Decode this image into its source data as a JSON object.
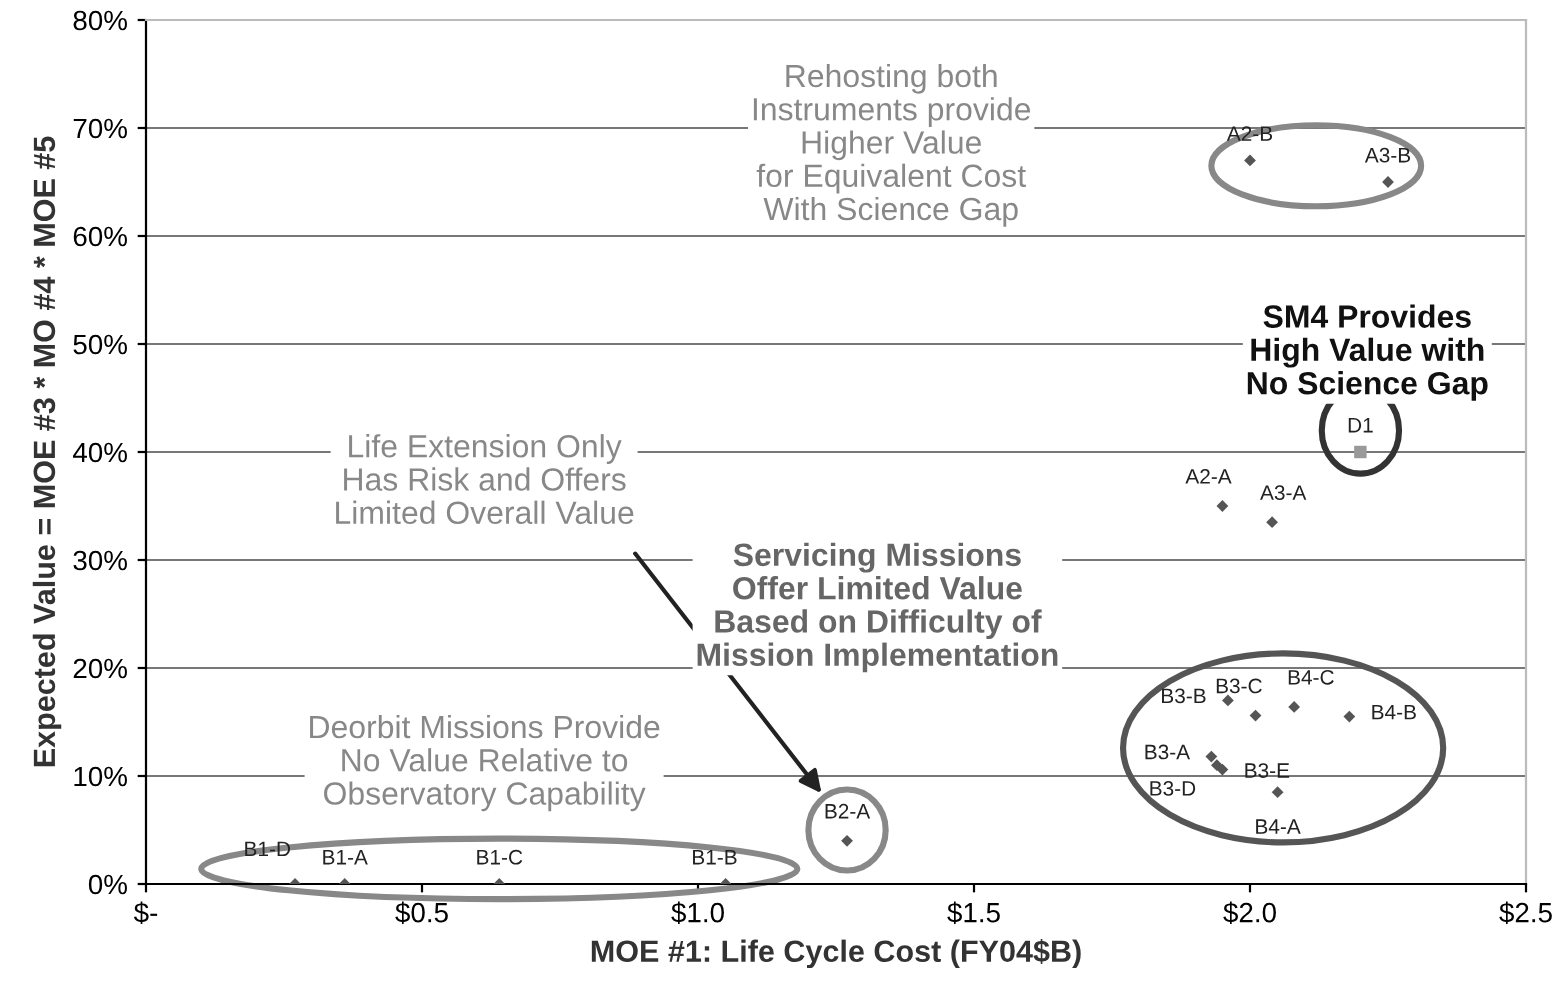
{
  "chart_data": {
    "type": "scatter",
    "xlabel": "MOE #1: Life Cycle Cost (FY04$B)",
    "ylabel": "Expected Value = MOE #3 * MO #4 * MOE #5",
    "xlim": [
      0,
      2.5
    ],
    "xticks": [
      {
        "value": 0,
        "label": "$-"
      },
      {
        "value": 0.5,
        "label": "$0.5"
      },
      {
        "value": 1.0,
        "label": "$1.0"
      },
      {
        "value": 1.5,
        "label": "$1.5"
      },
      {
        "value": 2.0,
        "label": "$2.0"
      },
      {
        "value": 2.5,
        "label": "$2.5"
      }
    ],
    "ylim": [
      0,
      80
    ],
    "yticks": [
      {
        "value": 0,
        "label": "0%"
      },
      {
        "value": 10,
        "label": "10%"
      },
      {
        "value": 20,
        "label": "20%"
      },
      {
        "value": 30,
        "label": "30%"
      },
      {
        "value": 40,
        "label": "40%"
      },
      {
        "value": 50,
        "label": "50%"
      },
      {
        "value": 60,
        "label": "60%"
      },
      {
        "value": 70,
        "label": "70%"
      },
      {
        "value": 80,
        "label": "80%"
      }
    ],
    "grid": "y",
    "series": [
      {
        "color": "#555555",
        "marker": "diamond",
        "x": [
          0.27,
          0.36,
          0.64,
          1.05,
          1.27,
          1.96,
          2.01,
          2.08,
          2.18,
          1.93,
          1.95,
          1.94,
          2.05,
          2.0,
          2.25,
          1.95,
          2.04
        ],
        "values": [
          0,
          0,
          0,
          0,
          4,
          17,
          15.6,
          16.4,
          15.5,
          11.8,
          10.6,
          11.0,
          8.5,
          67,
          65,
          35,
          33.5
        ]
      },
      {
        "color": "#999999",
        "marker": "square",
        "x": [
          2.2
        ],
        "values": [
          40
        ]
      }
    ],
    "annotations": [
      {
        "text": "B1-D",
        "x": 0.27,
        "y": 0
      },
      {
        "text": "B1-A",
        "x": 0.36,
        "y": 0
      },
      {
        "text": "B1-C",
        "x": 0.64,
        "y": 0
      },
      {
        "text": "B1-B",
        "x": 1.05,
        "y": 0
      },
      {
        "text": "B2-A",
        "x": 1.27,
        "y": 4
      },
      {
        "text": "B3-B",
        "x": 1.96,
        "y": 17
      },
      {
        "text": "B3-C",
        "x": 2.01,
        "y": 15.6
      },
      {
        "text": "B4-C",
        "x": 2.08,
        "y": 16.4
      },
      {
        "text": "B4-B",
        "x": 2.18,
        "y": 15.5
      },
      {
        "text": "B3-A",
        "x": 1.93,
        "y": 11.8
      },
      {
        "text": "B3-E",
        "x": 1.95,
        "y": 10.6
      },
      {
        "text": "B3-D",
        "x": 1.94,
        "y": 11.0
      },
      {
        "text": "B4-A",
        "x": 2.05,
        "y": 8.5
      },
      {
        "text": "A2-B",
        "x": 2.0,
        "y": 67
      },
      {
        "text": "A3-B",
        "x": 2.25,
        "y": 65
      },
      {
        "text": "A2-A",
        "x": 1.95,
        "y": 35
      },
      {
        "text": "A3-A",
        "x": 2.04,
        "y": 33.5
      },
      {
        "text": "D1",
        "x": 2.2,
        "y": 40
      },
      "Rehosting both\nInstruments provide\nHigher Value\nfor Equivalent Cost\nWith Science Gap",
      "SM4 Provides\nHigh Value with\nNo Science Gap",
      "Life Extension Only\nHas Risk and Offers\nLimited Overall Value",
      "Servicing Missions\nOffer Limited Value\nBased on Difficulty of\nMission Implementation",
      "Deorbit Missions Provide\nNo Value Relative to\nObservatory Capability"
    ]
  }
}
